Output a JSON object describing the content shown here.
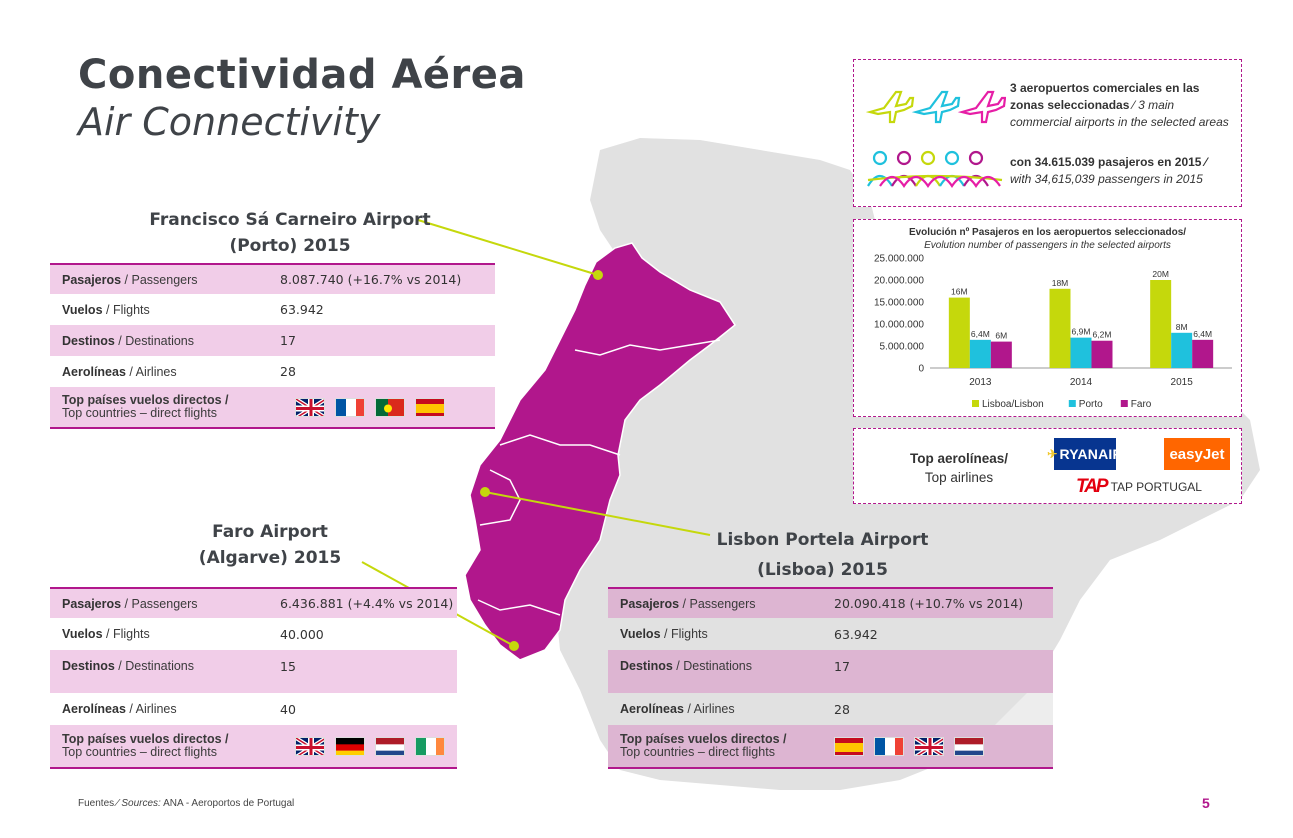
{
  "title": {
    "es": "Conectividad Aérea",
    "en": "Air Connectivity"
  },
  "airports": {
    "porto": {
      "heading_line1": "Francisco Sá Carneiro Airport",
      "heading_line2": "(Porto) 2015",
      "rows": {
        "pasajeros": {
          "label_es": "Pasajeros",
          "label_en": " / Passengers",
          "value": "8.087.740 (+16.7% vs 2014)"
        },
        "vuelos": {
          "label_es": "Vuelos",
          "label_en": " / Flights",
          "value": "63.942"
        },
        "destinos": {
          "label_es": "Destinos",
          "label_en": " / Destinations",
          "value": "17"
        },
        "aerolineas": {
          "label_es": "Aerolíneas",
          "label_en": " / Airlines",
          "value": "28"
        },
        "top": {
          "label_es": "Top países vuelos directos /",
          "label_en": "Top countries – direct flights"
        }
      },
      "flags": [
        "uk-flag-icon",
        "france-flag-icon",
        "portugal-flag-icon",
        "spain-flag-icon"
      ]
    },
    "faro": {
      "heading_line1": "Faro Airport",
      "heading_line2": "(Algarve) 2015",
      "rows": {
        "pasajeros": {
          "label_es": "Pasajeros",
          "label_en": " / Passengers",
          "value": "6.436.881 (+4.4% vs 2014)"
        },
        "vuelos": {
          "label_es": "Vuelos",
          "label_en": " / Flights",
          "value": "40.000"
        },
        "destinos": {
          "label_es": "Destinos",
          "label_en": " / Destinations",
          "value": "15"
        },
        "aerolineas": {
          "label_es": "Aerolíneas",
          "label_en": " / Airlines",
          "value": "40"
        },
        "top": {
          "label_es": "Top países vuelos directos /",
          "label_en": "Top countries – direct flights"
        }
      },
      "flags": [
        "uk-flag-icon",
        "germany-flag-icon",
        "netherlands-flag-icon",
        "ireland-flag-icon"
      ]
    },
    "lisbon": {
      "heading_line1": "Lisbon Portela Airport",
      "heading_line2": "(Lisboa) 2015",
      "rows": {
        "pasajeros": {
          "label_es": "Pasajeros",
          "label_en": " / Passengers",
          "value": "20.090.418 (+10.7% vs 2014)"
        },
        "vuelos": {
          "label_es": "Vuelos",
          "label_en": " / Flights",
          "value": "63.942"
        },
        "destinos": {
          "label_es": "Destinos",
          "label_en": " / Destinations",
          "value": "17"
        },
        "aerolineas": {
          "label_es": "Aerolíneas",
          "label_en": " / Airlines",
          "value": "28"
        },
        "top": {
          "label_es": "Top países vuelos directos /",
          "label_en": "Top countries – direct flights"
        }
      },
      "flags": [
        "spain-flag-icon",
        "france-flag-icon",
        "uk-flag-icon",
        "netherlands-flag-icon"
      ]
    }
  },
  "info": {
    "airports_line1": "3 aeropuertos comerciales en las",
    "airports_line2": "zonas seleccionadas",
    "airports_line2_sep": " ⁄ ",
    "airports_line2_en": "3 main",
    "airports_line3": "commercial airports in the selected areas",
    "passengers_line1": "con 34.615.039 pasajeros en 2015 ⁄",
    "passengers_line2": "with 34,615,039 passengers in 2015",
    "icons": [
      "airplane-icon",
      "people-icon"
    ]
  },
  "chart_data": {
    "type": "bar",
    "title": "Evolución nº Pasajeros en los aeropuertos seleccionados/",
    "subtitle": "Evolution number of passengers in the selected airports",
    "categories": [
      "2013",
      "2014",
      "2015"
    ],
    "series": [
      {
        "name": "Lisboa/Lisbon",
        "color": "#c5d80c",
        "values": [
          16000000,
          18000000,
          20000000
        ],
        "labels": [
          "16M",
          "18M",
          "20M"
        ]
      },
      {
        "name": "Porto",
        "color": "#1fc1dd",
        "values": [
          6400000,
          6900000,
          8000000
        ],
        "labels": [
          "6,4M",
          "6,9M",
          "8M"
        ]
      },
      {
        "name": "Faro",
        "color": "#b1178c",
        "values": [
          6000000,
          6200000,
          6400000
        ],
        "labels": [
          "6M",
          "6,2M",
          "6,4M"
        ]
      }
    ],
    "yticks": [
      "25.000.000",
      "20.000.000",
      "15.000.000",
      "10.000.000",
      "5.000.000",
      "0"
    ],
    "ylim": [
      0,
      25000000
    ],
    "grid": false,
    "legend": "bottom"
  },
  "airlines": {
    "label_es": "Top aerolíneas/",
    "label_en": "Top airlines",
    "ryanair": "RYANAIR",
    "easyjet": "easyJet",
    "tap_mark": "TAP",
    "tap_text": "TAP PORTUGAL"
  },
  "footer": {
    "prefix": "Fuentes ",
    "sources": "⁄ Sources:",
    "text": " ANA - Aeroportos de Portugal"
  },
  "page_number": "5",
  "colors": {
    "magenta": "#b1178c",
    "lime": "#c5d80c",
    "cyan": "#1fc1dd",
    "pink_shade": "#f1cde8",
    "map_grey": "#e0e0e0"
  }
}
